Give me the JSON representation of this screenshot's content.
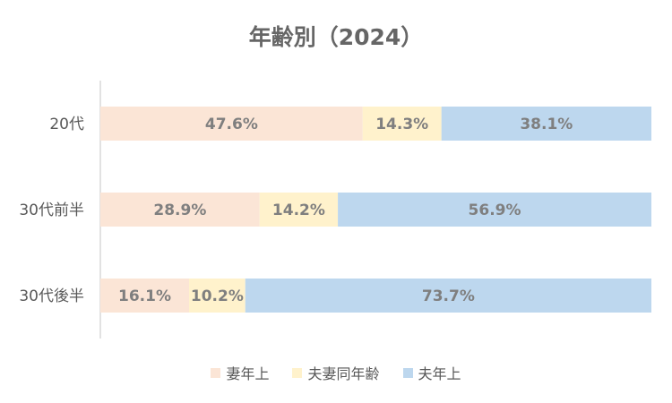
{
  "chart_data": {
    "type": "bar",
    "orientation": "horizontal",
    "stacked": "100%",
    "title": "年齢別（2024）",
    "categories": [
      "20代",
      "30代前半",
      "30代後半"
    ],
    "series": [
      {
        "name": "妻年上",
        "values": [
          47.6,
          28.9,
          16.1
        ],
        "labels": [
          "47.6%",
          "28.9%",
          "16.1%"
        ],
        "color": "#FBE5D6"
      },
      {
        "name": "夫妻同年齢",
        "values": [
          14.3,
          14.2,
          10.2
        ],
        "labels": [
          "14.3%",
          "14.2%",
          "10.2%"
        ],
        "color": "#FFF2CC"
      },
      {
        "name": "夫年上",
        "values": [
          38.1,
          56.9,
          73.7
        ],
        "labels": [
          "38.1%",
          "56.9%",
          "73.7%"
        ],
        "color": "#BDD7EE"
      }
    ],
    "xlim": [
      0,
      100
    ],
    "grid": false,
    "legend_position": "bottom"
  }
}
